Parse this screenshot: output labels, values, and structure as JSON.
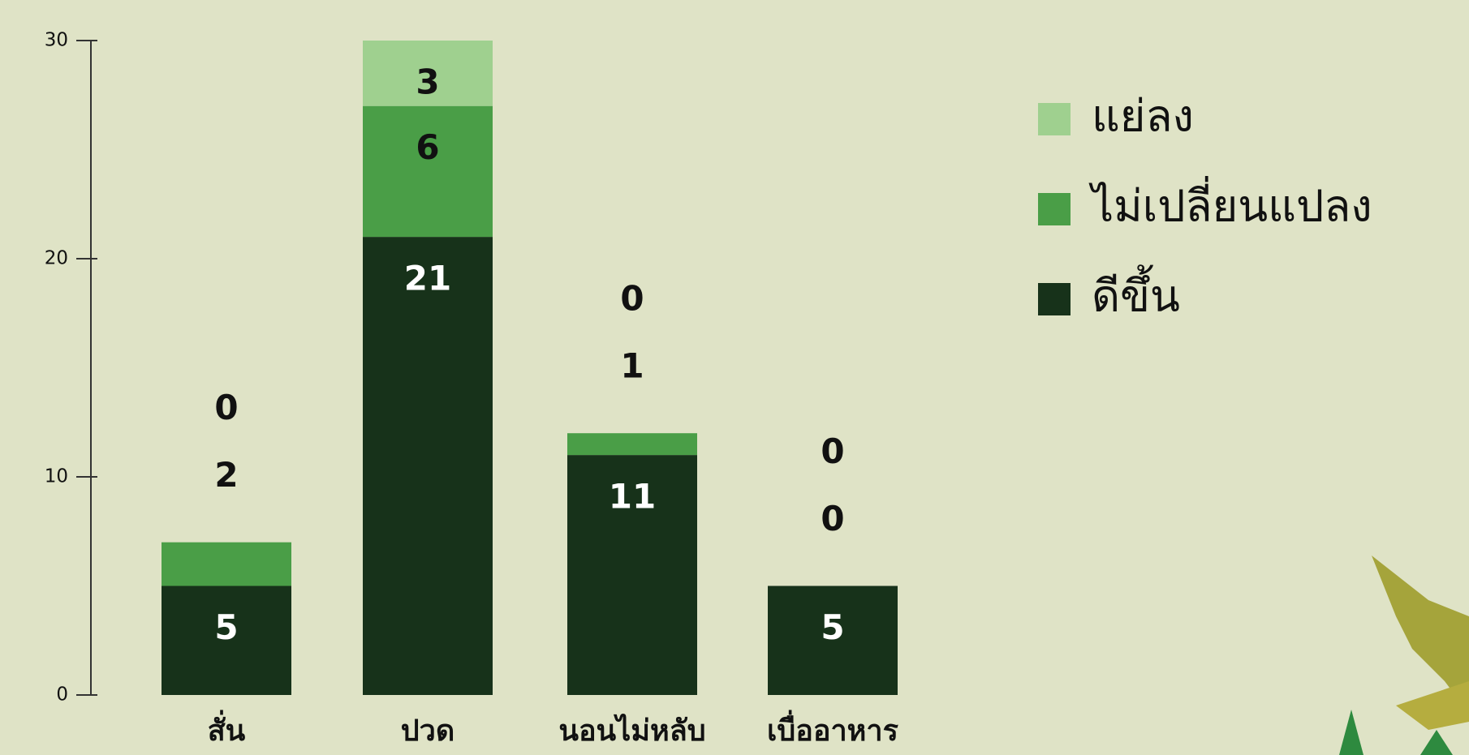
{
  "chart_data": {
    "type": "stacked-bar",
    "categories": [
      "สั่น",
      "ปวด",
      "นอนไม่หลับ",
      "เบื่ออาหาร"
    ],
    "series": [
      {
        "name": "ดีขึ้น",
        "color": "#17321a",
        "values": [
          5,
          21,
          11,
          5
        ]
      },
      {
        "name": "ไม่เปลี่ยนแปลง",
        "color": "#4a9e47",
        "values": [
          2,
          6,
          1,
          0
        ]
      },
      {
        "name": "แย่ลง",
        "color": "#9fd08f",
        "values": [
          0,
          3,
          0,
          0
        ]
      }
    ],
    "ylim": [
      0,
      30
    ],
    "yticks": [
      0,
      10,
      20,
      30
    ],
    "legend": "top-right"
  }
}
